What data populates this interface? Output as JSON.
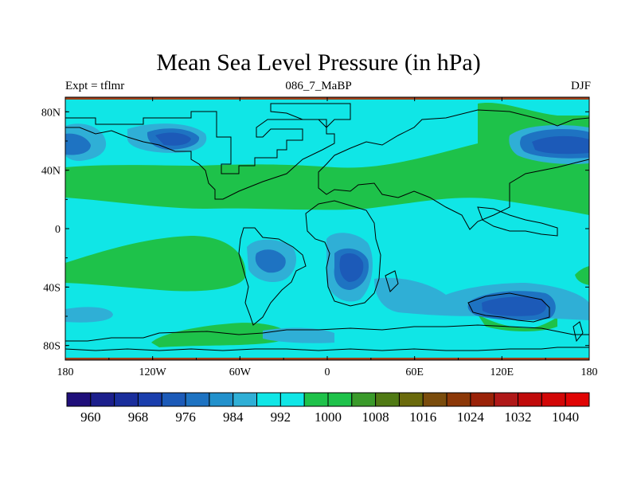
{
  "title": "Mean Sea Level Pressure (in hPa)",
  "subtitle_left": "Expt = tflmr",
  "subtitle_center": "086_7_MaBP",
  "subtitle_right": "DJF",
  "map": {
    "lon_range": [
      -180,
      180
    ],
    "lat_range": [
      -90,
      90
    ],
    "x_ticks": [
      {
        "value": -180,
        "label": "180"
      },
      {
        "value": -120,
        "label": "120W"
      },
      {
        "value": -60,
        "label": "60W"
      },
      {
        "value": 0,
        "label": "0"
      },
      {
        "value": 60,
        "label": "60E"
      },
      {
        "value": 120,
        "label": "120E"
      },
      {
        "value": 180,
        "label": "180"
      }
    ],
    "y_ticks": [
      {
        "value": 80,
        "label": "80N"
      },
      {
        "value": 40,
        "label": "40N"
      },
      {
        "value": 0,
        "label": "0"
      },
      {
        "value": -40,
        "label": "40S"
      },
      {
        "value": -80,
        "label": "80S"
      }
    ]
  },
  "colorbar": {
    "colors": [
      "#1f0f7a",
      "#1c1f8c",
      "#1a2e9c",
      "#1a3ead",
      "#1c5ab8",
      "#1e73c2",
      "#2291cc",
      "#2fafd6",
      "#10e6e6",
      "#10e6e6",
      "#1ec24a",
      "#1ec24a",
      "#3a9a2a",
      "#507a14",
      "#6a6a0c",
      "#7a4c0c",
      "#8c3808",
      "#9a2208",
      "#b01818",
      "#c00a0a",
      "#d20606",
      "#e00404"
    ],
    "labels": [
      "960",
      "968",
      "976",
      "984",
      "992",
      "1000",
      "1008",
      "1016",
      "1024",
      "1032",
      "1040"
    ]
  },
  "legend_colors": {
    "cyan": "#10e6e6",
    "green": "#1ec24a",
    "light_blue": "#2fafd6",
    "mid_blue": "#1e73c2",
    "dark_blue": "#1c5ab8",
    "dark_red": "#a0401a"
  }
}
